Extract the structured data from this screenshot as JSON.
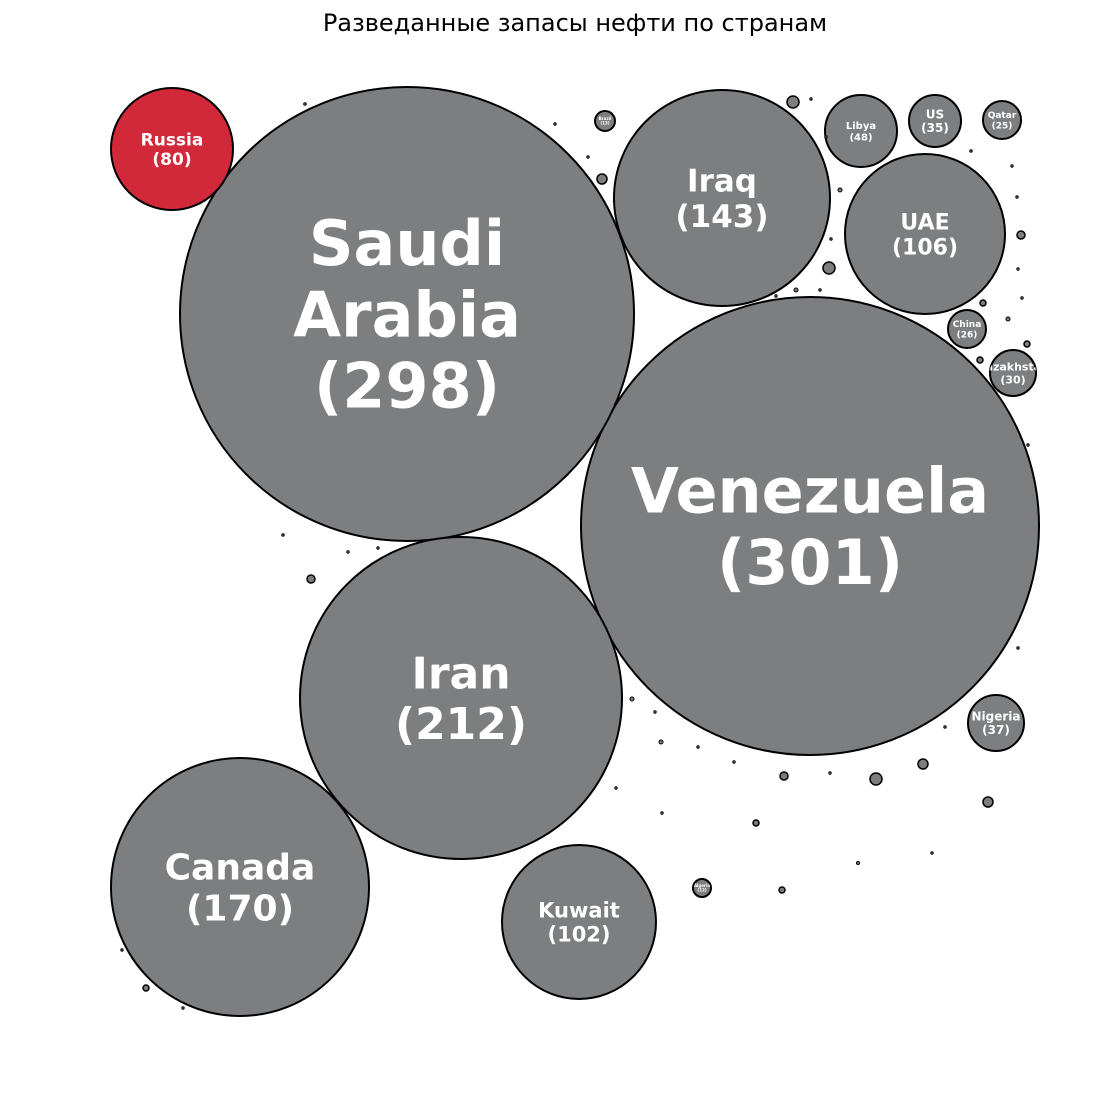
{
  "chart_data": {
    "type": "bubble",
    "title": "Разведанные запасы нефти по странам",
    "highlight_color": "#d1293a",
    "default_color": "#7c7e80",
    "series": [
      {
        "name": "Venezuela",
        "value": 301,
        "label": "(301)",
        "highlight": false
      },
      {
        "name": "Saudi Arabia",
        "value": 298,
        "label": "(298)",
        "highlight": false
      },
      {
        "name": "Iran",
        "value": 212,
        "label": "(212)",
        "highlight": false
      },
      {
        "name": "Canada",
        "value": 170,
        "label": "(170)",
        "highlight": false
      },
      {
        "name": "Iraq",
        "value": 143,
        "label": "(143)",
        "highlight": false
      },
      {
        "name": "UAE",
        "value": 106,
        "label": "(106)",
        "highlight": false
      },
      {
        "name": "Kuwait",
        "value": 102,
        "label": "(102)",
        "highlight": false
      },
      {
        "name": "Russia",
        "value": 80,
        "label": "(80)",
        "highlight": true
      },
      {
        "name": "Libya",
        "value": 48,
        "label": "(48)",
        "highlight": false
      },
      {
        "name": "Nigeria",
        "value": 37,
        "label": "(37)",
        "highlight": false
      },
      {
        "name": "US",
        "value": 35,
        "label": "(35)",
        "highlight": false
      },
      {
        "name": "Kazakhstan",
        "value": 30,
        "label": "(30)",
        "highlight": false
      },
      {
        "name": "China",
        "value": 26,
        "label": "(26)",
        "highlight": false
      },
      {
        "name": "Qatar",
        "value": 25,
        "label": "(25)",
        "highlight": false
      },
      {
        "name": "Brazil",
        "value": 13,
        "label": "(13)",
        "highlight": false
      },
      {
        "name": "Algeria",
        "value": 12,
        "label": "(12)",
        "highlight": false
      }
    ]
  }
}
